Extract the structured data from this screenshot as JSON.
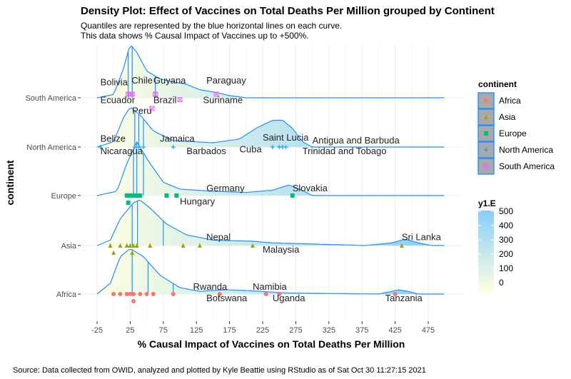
{
  "chart_data": {
    "type": "density_ridges",
    "title": "Density Plot: Effect of Vaccines on Total Deaths Per Million grouped by Continent",
    "subtitle_lines": [
      "Quantiles are represented by the blue horizontal lines on each curve.",
      "This data shows % Causal Impact of Vaccines up to +500%."
    ],
    "xlabel": "% Causal Impact of Vaccines on Total Deaths Per Million",
    "ylabel": "continent",
    "caption": "Source: Data collected from OWID, analyzed and plotted by Kyle Beattie using RStudio as of Sat Oct 30 11:27:15 2021",
    "x_ticks": [
      "-25",
      "25",
      "75",
      "125",
      "175",
      "225",
      "275",
      "325",
      "375",
      "425",
      "475"
    ],
    "xlim": [
      -25,
      500
    ],
    "categories": [
      "Africa",
      "Asia",
      "Europe",
      "North America",
      "South America"
    ],
    "quantiles": {
      "South America": [
        22,
        28,
        63
      ],
      "North America": [
        32,
        38,
        45
      ],
      "Europe": [
        30,
        35,
        45
      ],
      "Asia": [
        28,
        36,
        75
      ],
      "Africa": [
        28,
        52,
        90
      ]
    },
    "curves": {
      "South America": [
        [
          -25,
          0
        ],
        [
          0,
          0.06
        ],
        [
          15,
          0.55
        ],
        [
          25,
          1.0
        ],
        [
          35,
          0.85
        ],
        [
          50,
          0.5
        ],
        [
          70,
          0.35
        ],
        [
          90,
          0.3
        ],
        [
          110,
          0.25
        ],
        [
          130,
          0.15
        ],
        [
          155,
          0.1
        ],
        [
          175,
          0.04
        ],
        [
          200,
          0
        ],
        [
          500,
          0
        ]
      ],
      "North America": [
        [
          -25,
          0
        ],
        [
          0,
          0.1
        ],
        [
          15,
          0.55
        ],
        [
          25,
          0.75
        ],
        [
          40,
          0.6
        ],
        [
          60,
          0.3
        ],
        [
          90,
          0.12
        ],
        [
          150,
          0.08
        ],
        [
          190,
          0.15
        ],
        [
          215,
          0.35
        ],
        [
          240,
          0.5
        ],
        [
          255,
          0.5
        ],
        [
          270,
          0.35
        ],
        [
          285,
          0.1
        ],
        [
          300,
          0
        ],
        [
          500,
          0
        ]
      ],
      "Europe": [
        [
          -25,
          0
        ],
        [
          5,
          0.08
        ],
        [
          20,
          0.6
        ],
        [
          35,
          1.0
        ],
        [
          55,
          0.6
        ],
        [
          75,
          0.25
        ],
        [
          100,
          0.12
        ],
        [
          150,
          0.08
        ],
        [
          200,
          0.06
        ],
        [
          240,
          0.1
        ],
        [
          265,
          0.2
        ],
        [
          285,
          0.1
        ],
        [
          300,
          0
        ],
        [
          500,
          0
        ]
      ],
      "Asia": [
        [
          -25,
          0
        ],
        [
          -5,
          0.1
        ],
        [
          10,
          0.5
        ],
        [
          30,
          0.8
        ],
        [
          40,
          0.85
        ],
        [
          55,
          0.7
        ],
        [
          80,
          0.4
        ],
        [
          110,
          0.2
        ],
        [
          150,
          0.1
        ],
        [
          210,
          0.08
        ],
        [
          240,
          0.05
        ],
        [
          380,
          0
        ],
        [
          420,
          0.05
        ],
        [
          440,
          0.12
        ],
        [
          460,
          0.05
        ],
        [
          480,
          0
        ],
        [
          500,
          0
        ]
      ],
      "Africa": [
        [
          -25,
          0
        ],
        [
          -5,
          0.2
        ],
        [
          10,
          0.7
        ],
        [
          25,
          0.85
        ],
        [
          45,
          0.7
        ],
        [
          70,
          0.35
        ],
        [
          100,
          0.12
        ],
        [
          130,
          0.05
        ],
        [
          170,
          0.08
        ],
        [
          210,
          0.06
        ],
        [
          260,
          0.02
        ],
        [
          400,
          0
        ],
        [
          420,
          0.05
        ],
        [
          430,
          0.08
        ],
        [
          445,
          0.05
        ],
        [
          460,
          0
        ],
        [
          500,
          0
        ]
      ]
    },
    "points": {
      "South America": [
        [
          22,
          0.1
        ],
        [
          28,
          0.1
        ],
        [
          63,
          0.1
        ],
        [
          100,
          -0.05
        ],
        [
          155,
          0.1
        ],
        [
          26,
          0.1
        ],
        [
          58,
          -0.3
        ]
      ],
      "North America": [
        [
          -20,
          0
        ],
        [
          32,
          0
        ],
        [
          38,
          0
        ],
        [
          45,
          0
        ],
        [
          90,
          0
        ],
        [
          240,
          0
        ],
        [
          255,
          0
        ],
        [
          250,
          0
        ],
        [
          260,
          0
        ]
      ],
      "Europe": [
        [
          20,
          0
        ],
        [
          25,
          0
        ],
        [
          28,
          0
        ],
        [
          30,
          0
        ],
        [
          33,
          0
        ],
        [
          35,
          0
        ],
        [
          40,
          0
        ],
        [
          80,
          0
        ],
        [
          95,
          0
        ],
        [
          270,
          0
        ],
        [
          22,
          -0.2
        ]
      ],
      "Asia": [
        [
          -5,
          0
        ],
        [
          10,
          0
        ],
        [
          20,
          0
        ],
        [
          25,
          0
        ],
        [
          30,
          0
        ],
        [
          35,
          0
        ],
        [
          55,
          0
        ],
        [
          105,
          0
        ],
        [
          130,
          0
        ],
        [
          210,
          0
        ],
        [
          435,
          0
        ],
        [
          0,
          -0.2
        ],
        [
          28,
          -0.2
        ]
      ],
      "Africa": [
        [
          0,
          0
        ],
        [
          10,
          0
        ],
        [
          20,
          0
        ],
        [
          25,
          0
        ],
        [
          30,
          0
        ],
        [
          40,
          0
        ],
        [
          50,
          0
        ],
        [
          60,
          0
        ],
        [
          90,
          0
        ],
        [
          160,
          0
        ],
        [
          230,
          0
        ],
        [
          250,
          0
        ],
        [
          425,
          0
        ],
        [
          30,
          -0.2
        ]
      ]
    },
    "labels": {
      "South America": [
        [
          "Bolivia",
          -20,
          0.35
        ],
        [
          "Chile",
          27,
          0.4
        ],
        [
          "Guyana",
          60,
          0.4
        ],
        [
          "Paraguay",
          140,
          0.4
        ],
        [
          "Ecuador",
          -20,
          -0.15
        ],
        [
          "Brazil",
          60,
          -0.15
        ],
        [
          "Suriname",
          135,
          -0.15
        ],
        [
          "Peru",
          28,
          -0.45
        ]
      ],
      "North America": [
        [
          "Belize",
          -20,
          0.15
        ],
        [
          "Jamaica",
          70,
          0.15
        ],
        [
          "Saint Lucia",
          225,
          0.18
        ],
        [
          "Antigua and Barbuda",
          300,
          0.1
        ],
        [
          "Nicaragua",
          -20,
          -0.2
        ],
        [
          "Barbados",
          110,
          -0.2
        ],
        [
          "Cuba",
          190,
          -0.15
        ],
        [
          "Trinidad and Tobago",
          285,
          -0.2
        ]
      ],
      "Europe": [
        [
          "Germany",
          140,
          0.12
        ],
        [
          "Slovakia",
          270,
          0.12
        ],
        [
          "Hungary",
          100,
          -0.25
        ]
      ],
      "Asia": [
        [
          "Nepal",
          140,
          0.15
        ],
        [
          "Sri Lanka",
          435,
          0.15
        ],
        [
          "Malaysia",
          225,
          -0.2
        ]
      ],
      "Africa": [
        [
          "Rwanda",
          120,
          0.12
        ],
        [
          "Namibia",
          210,
          0.12
        ],
        [
          "Botswana",
          140,
          -0.2
        ],
        [
          "Uganda",
          240,
          -0.2
        ],
        [
          "Tanzania",
          410,
          -0.2
        ]
      ]
    },
    "legend_continent": {
      "title": "continent",
      "items": [
        {
          "name": "Africa",
          "color": "#F8766D",
          "shape": "circle"
        },
        {
          "name": "Asia",
          "color": "#A3A500",
          "shape": "triangle"
        },
        {
          "name": "Europe",
          "color": "#00BF7D",
          "shape": "square"
        },
        {
          "name": "North America",
          "color": "#00B0F6",
          "shape": "plus"
        },
        {
          "name": "South America",
          "color": "#E76BF3",
          "shape": "box-x"
        }
      ]
    },
    "legend_fill": {
      "title": "y1.E",
      "ticks": [
        "500",
        "400",
        "300",
        "200",
        "100",
        "0"
      ],
      "color_low": "#FFFFE0",
      "color_high": "#87CEFA"
    },
    "grid": true,
    "legend_position": "right"
  }
}
